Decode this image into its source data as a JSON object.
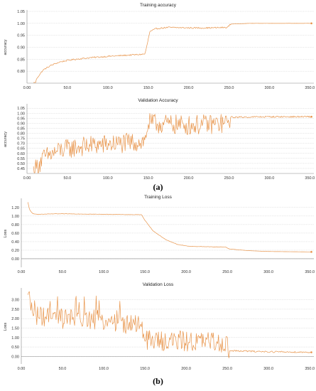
{
  "figure": {
    "caption_a": "(a)",
    "caption_b": "(b)"
  },
  "colors": {
    "series": "#e8944a",
    "axis": "#888888",
    "grid": "#bfbfbf"
  },
  "chart_data": [
    {
      "type": "line",
      "title": "Training accuracy",
      "ylabel": "accuracy",
      "xlim": [
        0,
        355
      ],
      "ylim": [
        0.75,
        1.05
      ],
      "xticks": [
        "0.00",
        "50.0",
        "100.0",
        "150.0",
        "200.0",
        "250.0",
        "300.0",
        "350.0"
      ],
      "yticks": [
        "0.80",
        "0.85",
        "0.90",
        "0.95",
        "1.00",
        "1.05"
      ],
      "grid": true,
      "keypoints": [
        [
          8,
          0.71
        ],
        [
          12,
          0.77
        ],
        [
          20,
          0.805
        ],
        [
          30,
          0.825
        ],
        [
          40,
          0.838
        ],
        [
          50,
          0.845
        ],
        [
          60,
          0.85
        ],
        [
          80,
          0.857
        ],
        [
          100,
          0.862
        ],
        [
          120,
          0.866
        ],
        [
          140,
          0.87
        ],
        [
          146,
          0.872
        ],
        [
          148,
          0.9
        ],
        [
          152,
          0.965
        ],
        [
          160,
          0.978
        ],
        [
          175,
          0.983
        ],
        [
          200,
          0.981
        ],
        [
          225,
          0.981
        ],
        [
          248,
          0.983
        ],
        [
          252,
          0.997
        ],
        [
          275,
          1.0
        ],
        [
          300,
          1.0
        ],
        [
          352,
          1.0
        ]
      ],
      "noise": 0.003
    },
    {
      "type": "line",
      "title": "Validation Accuracy",
      "ylabel": "accuracy",
      "xlim": [
        0,
        355
      ],
      "ylim": [
        0.4,
        1.08
      ],
      "xticks": [
        "0.00",
        "50.0",
        "100.0",
        "150.0",
        "200.0",
        "250.0",
        "300.0",
        "350.0"
      ],
      "yticks": [
        "0.45",
        "0.50",
        "0.55",
        "0.60",
        "0.65",
        "0.70",
        "0.75",
        "0.80",
        "0.85",
        "0.90",
        "0.95",
        "1.00",
        "1.05"
      ],
      "grid": true,
      "keypoints": [
        [
          8,
          0.42
        ],
        [
          20,
          0.55
        ],
        [
          40,
          0.63
        ],
        [
          60,
          0.66
        ],
        [
          80,
          0.68
        ],
        [
          100,
          0.69
        ],
        [
          120,
          0.7
        ],
        [
          146,
          0.72
        ],
        [
          150,
          0.9
        ],
        [
          200,
          0.88
        ],
        [
          248,
          0.9
        ],
        [
          252,
          0.96
        ],
        [
          300,
          0.965
        ],
        [
          352,
          0.965
        ]
      ],
      "noise": 0.1
    },
    {
      "type": "line",
      "title": "Training Loss",
      "ylabel": "Loss",
      "xlim": [
        0,
        355
      ],
      "ylim": [
        -0.2,
        1.38
      ],
      "xticks": [
        "0.00",
        "50.0",
        "100.0",
        "150.0",
        "200.0",
        "250.0",
        "300.0",
        "350.0"
      ],
      "yticks": [
        "0.00",
        "0.20",
        "0.40",
        "0.60",
        "0.80",
        "1.00",
        "1.20"
      ],
      "grid": true,
      "keypoints": [
        [
          8,
          1.32
        ],
        [
          10,
          1.15
        ],
        [
          14,
          1.05
        ],
        [
          20,
          1.04
        ],
        [
          40,
          1.05
        ],
        [
          60,
          1.05
        ],
        [
          100,
          1.04
        ],
        [
          120,
          1.035
        ],
        [
          146,
          1.03
        ],
        [
          150,
          0.9
        ],
        [
          160,
          0.65
        ],
        [
          175,
          0.45
        ],
        [
          190,
          0.33
        ],
        [
          205,
          0.29
        ],
        [
          230,
          0.28
        ],
        [
          248,
          0.275
        ],
        [
          252,
          0.23
        ],
        [
          275,
          0.19
        ],
        [
          300,
          0.17
        ],
        [
          352,
          0.16
        ]
      ],
      "noise": 0.004
    },
    {
      "type": "line",
      "title": "Validation Loss",
      "ylabel": "Loss",
      "xlim": [
        0,
        355
      ],
      "ylim": [
        -0.4,
        3.55
      ],
      "xticks": [
        "0.00",
        "50.0",
        "100.0",
        "150.0",
        "200.0",
        "250.0",
        "300.0",
        "350.0"
      ],
      "yticks": [
        "0.00",
        "0.50",
        "1.00",
        "1.50",
        "2.00",
        "2.50",
        "3.00"
      ],
      "grid": true,
      "keypoints": [
        [
          8,
          2.9
        ],
        [
          20,
          2.1
        ],
        [
          40,
          2.0
        ],
        [
          60,
          2.0
        ],
        [
          80,
          1.95
        ],
        [
          100,
          1.9
        ],
        [
          120,
          1.8
        ],
        [
          146,
          1.55
        ],
        [
          150,
          0.85
        ],
        [
          200,
          0.8
        ],
        [
          248,
          0.75
        ],
        [
          252,
          0.3
        ],
        [
          300,
          0.25
        ],
        [
          352,
          0.22
        ]
      ],
      "noise": 0.55
    }
  ]
}
